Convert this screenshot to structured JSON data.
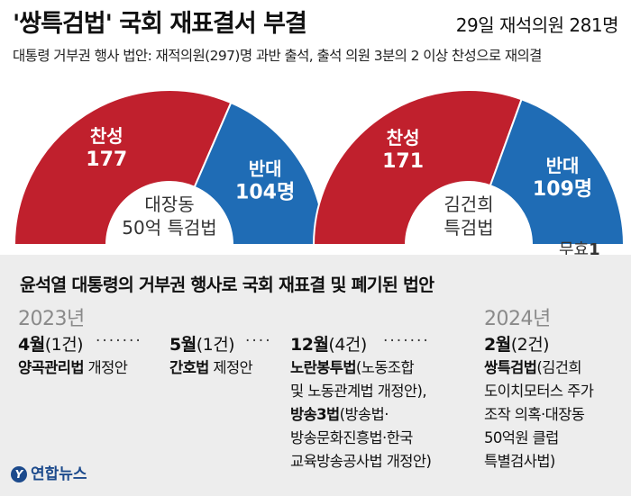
{
  "title": "'쌍특검법' 국회 재표결서 부결",
  "session_info": "29일 재석의원 281명",
  "subtitle": "대통령 거부권 행사 법안: 재적의원(297)명 과반 출석, 출석 의원 3분의 2 이상 찬성으로 재의결",
  "invalid": {
    "label": "무효",
    "value": "1"
  },
  "colors": {
    "for": "#c0202d",
    "against": "#1f6cb5",
    "background_band": "#ededed"
  },
  "chart_data": [
    {
      "type": "pie",
      "shape": "semi-donut",
      "center_label": [
        "대장동",
        "50억 특검법"
      ],
      "slices": [
        {
          "label": "찬성",
          "value": 177,
          "display": "177",
          "color": "#c0202d"
        },
        {
          "label": "반대",
          "value": 104,
          "display": "104명",
          "color": "#1f6cb5"
        }
      ]
    },
    {
      "type": "pie",
      "shape": "semi-donut",
      "center_label": [
        "김건희",
        "특검법"
      ],
      "slices": [
        {
          "label": "찬성",
          "value": 171,
          "display": "171",
          "color": "#c0202d"
        },
        {
          "label": "반대",
          "value": 109,
          "display": "109명",
          "color": "#1f6cb5"
        }
      ]
    }
  ],
  "timeline": {
    "title": "윤석열 대통령의 거부권 행사로 국회 재표결 및 폐기된 법안",
    "year_2023": "2023년",
    "year_2024": "2024년",
    "dots": "·······",
    "dots_short": "····",
    "entries": [
      {
        "month": "4월",
        "count": "(1건)",
        "line1_bold": "양곡관리법",
        "line1_rest": " 개정안"
      },
      {
        "month": "5월",
        "count": "(1건)",
        "line1_bold": "간호법",
        "line1_rest": " 제정안"
      },
      {
        "month": "12월",
        "count": "(4건)",
        "line1_bold": "노란봉투법",
        "line1_rest": "(노동조합",
        "line2": "및 노동관계법 개정안),",
        "line3_bold": "방송3법",
        "line3_rest": "(방송법·",
        "line4": "방송문화진흥법·한국",
        "line5": "교육방송공사법 개정안)"
      },
      {
        "month": "2월",
        "count": "(2건)",
        "line1_bold": "쌍특검법",
        "line1_rest": "(김건희",
        "line2": "도이치모터스 주가",
        "line3": "조작 의혹·대장동",
        "line4": "50억원 클럽",
        "line5": "특별검사법)"
      }
    ]
  },
  "logo": {
    "icon": "yonhap-logo-icon",
    "text": "연합뉴스"
  }
}
